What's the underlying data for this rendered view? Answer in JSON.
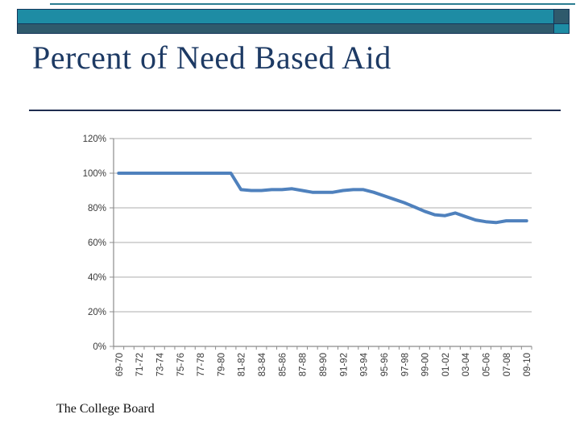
{
  "slide": {
    "title": "Percent of Need Based Aid",
    "footer": "The College Board"
  },
  "theme": {
    "teal": "#1E8CA4",
    "slate": "#2F5A6C",
    "border_navy": "#15365A",
    "title_color": "#1D3A64",
    "line_color": "#4F81BD",
    "gridline_color": "#ACACAC",
    "axis_color": "#8C8C8C",
    "tick_label_color": "#3A3A3A"
  },
  "chart_data": {
    "type": "line",
    "title": "Percent of Need Based Aid",
    "xlabel": "",
    "ylabel": "",
    "categories": [
      "69-70",
      "70-71",
      "71-72",
      "72-73",
      "73-74",
      "74-75",
      "75-76",
      "76-77",
      "77-78",
      "78-79",
      "79-80",
      "80-81",
      "81-82",
      "82-83",
      "83-84",
      "84-85",
      "85-86",
      "86-87",
      "87-88",
      "88-89",
      "89-90",
      "90-91",
      "91-92",
      "92-93",
      "93-94",
      "94-95",
      "95-96",
      "96-97",
      "97-98",
      "98-99",
      "99-00",
      "00-01",
      "01-02",
      "02-03",
      "03-04",
      "04-05",
      "05-06",
      "06-07",
      "07-08",
      "08-09",
      "09-10"
    ],
    "values": [
      100,
      100,
      100,
      100,
      100,
      100,
      100,
      100,
      100,
      100,
      100,
      100,
      90.5,
      90,
      90,
      90.5,
      90.5,
      91,
      90,
      89,
      89,
      89,
      90,
      90.5,
      90.5,
      89,
      87,
      85,
      83,
      80.5,
      78,
      76,
      75.5,
      77,
      75,
      73,
      72,
      71.5,
      72.5,
      72.5,
      72.5
    ],
    "ylim": [
      0,
      120
    ],
    "ytick_labels": [
      "120%",
      "100%",
      "80%",
      "60%",
      "40%",
      "20%",
      "0%"
    ],
    "ytick_values": [
      120,
      100,
      80,
      60,
      40,
      20,
      0
    ],
    "x_label_every": 2,
    "visible_x_labels": [
      "69-70",
      "71-72",
      "73-74",
      "75-76",
      "77-78",
      "79-80",
      "81-82",
      "83-84",
      "85-86",
      "87-88",
      "89-90",
      "91-92",
      "93-94",
      "95-96",
      "97-98",
      "99-00",
      "01-02",
      "03-04",
      "05-06",
      "07-08",
      "09-10"
    ],
    "grid": "horizontal",
    "legend": "none"
  }
}
